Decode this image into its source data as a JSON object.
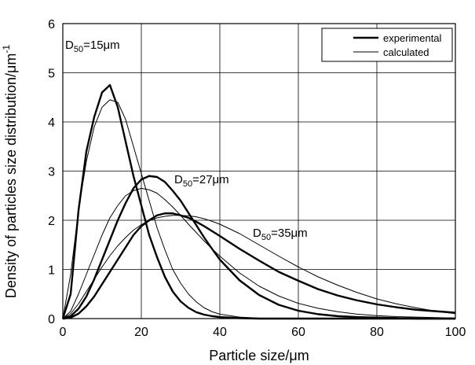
{
  "chart_data": {
    "type": "line",
    "x_label": "Particle size/μm",
    "y_label": {
      "text": "Density of particles size distribution/μm",
      "superscript": "-1"
    },
    "x": [
      0,
      2,
      4,
      6,
      8,
      10,
      12,
      14,
      16,
      18,
      20,
      22,
      24,
      26,
      28,
      30,
      32,
      34,
      36,
      38,
      40,
      45,
      50,
      55,
      60,
      65,
      70,
      75,
      80,
      85,
      90,
      95,
      100
    ],
    "legend": [
      {
        "name": "experimental",
        "color": "#000",
        "line_width": 2.4
      },
      {
        "name": "calculated",
        "color": "#000",
        "line_width": 1
      }
    ],
    "legend_position": "upper right",
    "series": [
      {
        "color": "#000",
        "line_width": 2.4,
        "values": [
          0,
          0.5,
          2.2,
          3.4,
          4.1,
          4.6,
          4.75,
          4.3,
          3.6,
          2.9,
          2.3,
          1.7,
          1.25,
          0.85,
          0.55,
          0.35,
          0.22,
          0.13,
          0.08,
          0.05,
          0.03,
          0.01,
          0,
          0,
          0,
          0,
          0,
          0,
          0,
          0,
          0,
          0,
          0
        ]
      },
      {
        "color": "#000",
        "line_width": 1,
        "values": [
          0,
          0.9,
          2.2,
          3.2,
          3.9,
          4.3,
          4.45,
          4.4,
          4.05,
          3.5,
          2.95,
          2.4,
          1.85,
          1.4,
          1.0,
          0.72,
          0.5,
          0.34,
          0.22,
          0.14,
          0.09,
          0.03,
          0.01,
          0,
          0,
          0,
          0,
          0,
          0,
          0,
          0,
          0,
          0
        ]
      },
      {
        "color": "#000",
        "line_width": 2.4,
        "values": [
          0,
          0.05,
          0.2,
          0.45,
          0.8,
          1.2,
          1.6,
          2.0,
          2.35,
          2.65,
          2.83,
          2.9,
          2.88,
          2.78,
          2.6,
          2.4,
          2.15,
          1.9,
          1.65,
          1.42,
          1.2,
          0.78,
          0.48,
          0.28,
          0.16,
          0.09,
          0.05,
          0.03,
          0.02,
          0.01,
          0,
          0,
          0
        ]
      },
      {
        "color": "#000",
        "line_width": 1,
        "values": [
          0,
          0.15,
          0.5,
          0.9,
          1.3,
          1.7,
          2.05,
          2.3,
          2.5,
          2.6,
          2.65,
          2.62,
          2.55,
          2.42,
          2.27,
          2.1,
          1.92,
          1.75,
          1.58,
          1.42,
          1.27,
          0.93,
          0.66,
          0.46,
          0.31,
          0.21,
          0.14,
          0.09,
          0.06,
          0.04,
          0.03,
          0.02,
          0.01
        ]
      },
      {
        "color": "#000",
        "line_width": 2.4,
        "values": [
          0,
          0.02,
          0.1,
          0.25,
          0.45,
          0.7,
          0.95,
          1.2,
          1.45,
          1.7,
          1.88,
          2.0,
          2.1,
          2.14,
          2.14,
          2.1,
          2.05,
          1.97,
          1.88,
          1.78,
          1.68,
          1.42,
          1.18,
          0.95,
          0.77,
          0.6,
          0.47,
          0.37,
          0.29,
          0.23,
          0.18,
          0.15,
          0.12
        ]
      },
      {
        "color": "#000",
        "line_width": 1,
        "values": [
          0,
          0.1,
          0.3,
          0.55,
          0.8,
          1.05,
          1.28,
          1.48,
          1.65,
          1.8,
          1.91,
          1.99,
          2.05,
          2.08,
          2.1,
          2.1,
          2.09,
          2.07,
          2.03,
          1.98,
          1.92,
          1.73,
          1.5,
          1.27,
          1.05,
          0.85,
          0.68,
          0.53,
          0.4,
          0.3,
          0.22,
          0.15,
          0.1
        ]
      }
    ],
    "annotations": [
      {
        "prefix": "D",
        "subscript": "50",
        "suffix": "=15μm"
      },
      {
        "prefix": "D",
        "subscript": "50",
        "suffix": "=27μm"
      },
      {
        "prefix": "D",
        "subscript": "50",
        "suffix": "=35μm"
      }
    ],
    "xlim": [
      0,
      100
    ],
    "xticks": [
      0,
      20,
      40,
      60,
      80,
      100
    ],
    "ylim": [
      0,
      6
    ],
    "yticks": [
      0,
      1,
      2,
      3,
      4,
      5,
      6
    ],
    "grid": true
  }
}
